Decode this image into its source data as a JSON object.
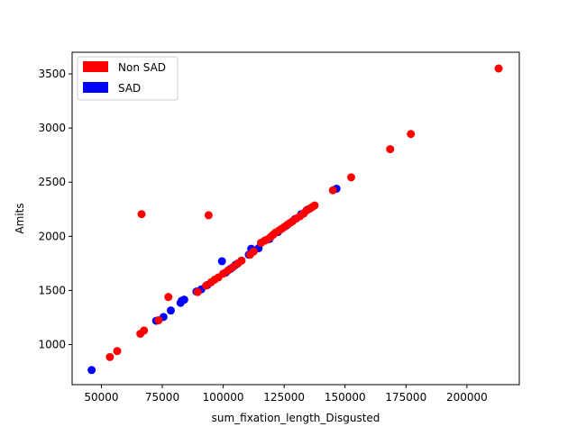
{
  "chart_data": {
    "type": "scatter",
    "xlabel": "sum_fixation_length_Disgusted",
    "ylabel": "Amits",
    "xlim": [
      38000,
      221500
    ],
    "ylim": [
      630,
      3700
    ],
    "xticks": [
      50000,
      75000,
      100000,
      125000,
      150000,
      175000,
      200000
    ],
    "xtick_labels": [
      "50000",
      "75000",
      "100000",
      "125000",
      "150000",
      "175000",
      "200000"
    ],
    "yticks": [
      1000,
      1500,
      2000,
      2500,
      3000,
      3500
    ],
    "ytick_labels": [
      "1000",
      "1500",
      "2000",
      "2500",
      "3000",
      "3500"
    ],
    "grid": false,
    "legend_position": "upper-left",
    "legend": [
      {
        "label": "Non SAD",
        "color": "#ff0000"
      },
      {
        "label": "SAD",
        "color": "#0000ff"
      }
    ],
    "series": [
      {
        "name": "SAD",
        "color": "#0000ff",
        "points": [
          [
            46000,
            765
          ],
          [
            72500,
            1220
          ],
          [
            75500,
            1255
          ],
          [
            78500,
            1315
          ],
          [
            82500,
            1385
          ],
          [
            83000,
            1405
          ],
          [
            84000,
            1415
          ],
          [
            89000,
            1490
          ],
          [
            91000,
            1510
          ],
          [
            93500,
            1550
          ],
          [
            99500,
            1770
          ],
          [
            101000,
            1665
          ],
          [
            103000,
            1700
          ],
          [
            105000,
            1735
          ],
          [
            107500,
            1775
          ],
          [
            110500,
            1830
          ],
          [
            111500,
            1885
          ],
          [
            114500,
            1890
          ],
          [
            119000,
            1975
          ],
          [
            122500,
            2040
          ],
          [
            126000,
            2100
          ],
          [
            129500,
            2160
          ],
          [
            132000,
            2205
          ],
          [
            134500,
            2245
          ],
          [
            146500,
            2440
          ]
        ]
      },
      {
        "name": "Non SAD",
        "color": "#ff0000",
        "points": [
          [
            53500,
            885
          ],
          [
            56500,
            940
          ],
          [
            66000,
            1100
          ],
          [
            67500,
            1130
          ],
          [
            66500,
            2205
          ],
          [
            73500,
            1225
          ],
          [
            77500,
            1440
          ],
          [
            94000,
            2195
          ],
          [
            89500,
            1485
          ],
          [
            93000,
            1545
          ],
          [
            95000,
            1575
          ],
          [
            96500,
            1600
          ],
          [
            98000,
            1620
          ],
          [
            100000,
            1655
          ],
          [
            102000,
            1685
          ],
          [
            104000,
            1715
          ],
          [
            106000,
            1750
          ],
          [
            107500,
            1775
          ],
          [
            111000,
            1830
          ],
          [
            112500,
            1860
          ],
          [
            115500,
            1940
          ],
          [
            117000,
            1960
          ],
          [
            118000,
            1970
          ],
          [
            119500,
            1995
          ],
          [
            120500,
            2015
          ],
          [
            121500,
            2035
          ],
          [
            123000,
            2055
          ],
          [
            124000,
            2070
          ],
          [
            125000,
            2085
          ],
          [
            126500,
            2110
          ],
          [
            127500,
            2125
          ],
          [
            128500,
            2140
          ],
          [
            130000,
            2165
          ],
          [
            131500,
            2185
          ],
          [
            133000,
            2210
          ],
          [
            134000,
            2235
          ],
          [
            135500,
            2255
          ],
          [
            136500,
            2270
          ],
          [
            137500,
            2285
          ],
          [
            145000,
            2425
          ],
          [
            152500,
            2545
          ],
          [
            168500,
            2805
          ],
          [
            177000,
            2945
          ],
          [
            213000,
            3550
          ]
        ]
      }
    ]
  }
}
